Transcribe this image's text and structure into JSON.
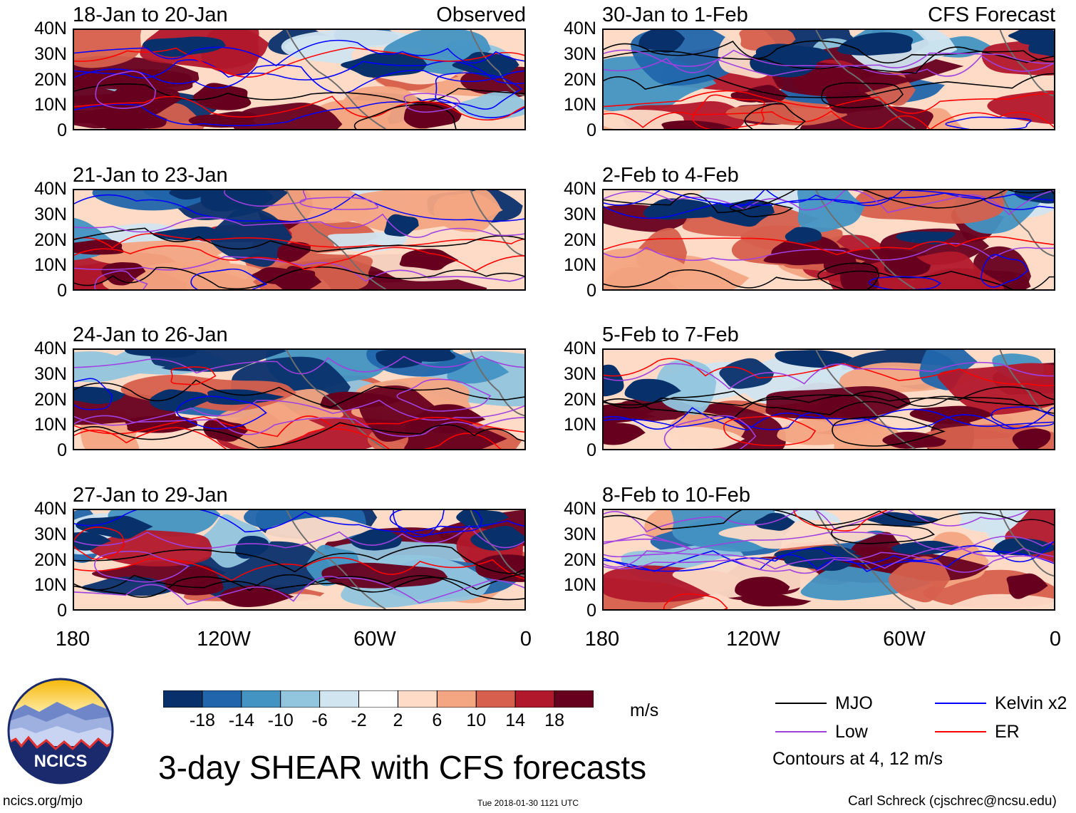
{
  "figure": {
    "title": "3-day SHEAR with CFS forecasts",
    "observed_tag": "Observed",
    "forecast_tag": "CFS Forecast",
    "latitude_labels": [
      "40N",
      "30N",
      "20N",
      "10N",
      "0"
    ],
    "longitude_labels": [
      "180",
      "120W",
      "60W",
      "0"
    ]
  },
  "panels": [
    {
      "period": "18-Jan to 20-Jan",
      "kind": "observed"
    },
    {
      "period": "21-Jan to 23-Jan",
      "kind": "observed"
    },
    {
      "period": "24-Jan to 26-Jan",
      "kind": "observed"
    },
    {
      "period": "27-Jan to 29-Jan",
      "kind": "observed"
    },
    {
      "period": "30-Jan to 1-Feb",
      "kind": "forecast"
    },
    {
      "period": "2-Feb to 4-Feb",
      "kind": "forecast"
    },
    {
      "period": "5-Feb to 7-Feb",
      "kind": "forecast"
    },
    {
      "period": "8-Feb to 10-Feb",
      "kind": "forecast"
    }
  ],
  "colorbar": {
    "unit": "m/s",
    "labels": [
      "-18",
      "-14",
      "-10",
      "-6",
      "-2",
      "2",
      "6",
      "10",
      "14",
      "18"
    ],
    "colors": [
      "#08306b",
      "#2166ac",
      "#4393c3",
      "#92c5de",
      "#d1e5f0",
      "#ffffff",
      "#fddbc7",
      "#f4a582",
      "#d6604d",
      "#b2182b",
      "#67001f"
    ]
  },
  "legend": {
    "items": [
      {
        "label": "MJO",
        "color": "#000000"
      },
      {
        "label": "Kelvin x2",
        "color": "#0000ff"
      },
      {
        "label": "Low",
        "color": "#a040e0"
      },
      {
        "label": "ER",
        "color": "#ff0000"
      }
    ],
    "note": "Contours at 4, 12 m/s"
  },
  "footer": {
    "logo_text": "NCICS",
    "url": "ncics.org/mjo",
    "timestamp": "Tue 2018-01-30 1121 UTC",
    "credit": "Carl Schreck (cjschrec@ncsu.edu)"
  }
}
